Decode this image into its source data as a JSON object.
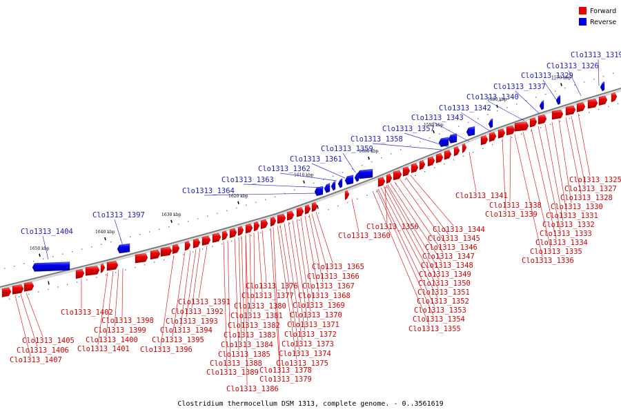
{
  "caption": "Clostridium thermocellum DSM 1313, complete genome. - 0..3561619",
  "legend": {
    "forward_label": "Forward",
    "reverse_label": "Reverse",
    "forward_color": "#ee0000",
    "reverse_color": "#0000ee"
  },
  "scale_labels": [
    "1650 kbp",
    "1640 kbp",
    "1630 kbp",
    "1620 kbp",
    "1610 kbp",
    "1600 kbp",
    "1590 kbp",
    "1580 kbp",
    "1570 kbp"
  ],
  "reverse_genes": [
    "Clo1313_1319",
    "Clo1313_1326",
    "Clo1313_1329",
    "Clo1313_1337",
    "Clo1313_1340",
    "Clo1313_1342",
    "Clo1313_1343",
    "Clo1313_1357",
    "Clo1313_1358",
    "Clo1313_1359",
    "Clo1313_1361",
    "Clo1313_1362",
    "Clo1313_1363",
    "Clo1313_1364",
    "Clo1313_1397",
    "Clo1313_1404"
  ],
  "forward_genes": [
    "Clo1313_1325",
    "Clo1313_1327",
    "Clo1313_1328",
    "Clo1313_1330",
    "Clo1313_1331",
    "Clo1313_1332",
    "Clo1313_1333",
    "Clo1313_1334",
    "Clo1313_1335",
    "Clo1313_1336",
    "Clo1313_1338",
    "Clo1313_1339",
    "Clo1313_1341",
    "Clo1313_1344",
    "Clo1313_1345",
    "Clo1313_1346",
    "Clo1313_1347",
    "Clo1313_1348",
    "Clo1313_1349",
    "Clo1313_1350",
    "Clo1313_1351",
    "Clo1313_1352",
    "Clo1313_1353",
    "Clo1313_1354",
    "Clo1313_1355",
    "Clo1313_1356",
    "Clo1313_1360",
    "Clo1313_1365",
    "Clo1313_1366",
    "Clo1313_1367",
    "Clo1313_1368",
    "Clo1313_1369",
    "Clo1313_1370",
    "Clo1313_1371",
    "Clo1313_1372",
    "Clo1313_1373",
    "Clo1313_1374",
    "Clo1313_1375",
    "Clo1313_1376",
    "Clo1313_1377",
    "Clo1313_1378",
    "Clo1313_1379",
    "Clo1313_1380",
    "Clo1313_1381",
    "Clo1313_1382",
    "Clo1313_1383",
    "Clo1313_1384",
    "Clo1313_1385",
    "Clo1313_1386",
    "Clo1313_1388",
    "Clo1313_1389",
    "Clo1313_1391",
    "Clo1313_1392",
    "Clo1313_1393",
    "Clo1313_1394",
    "Clo1313_1395",
    "Clo1313_1396",
    "Clo1313_1398",
    "Clo1313_1399",
    "Clo1313_1400",
    "Clo1313_1401",
    "Clo1313_1402",
    "Clo1313_1405",
    "Clo1313_1406",
    "Clo1313_1407"
  ]
}
